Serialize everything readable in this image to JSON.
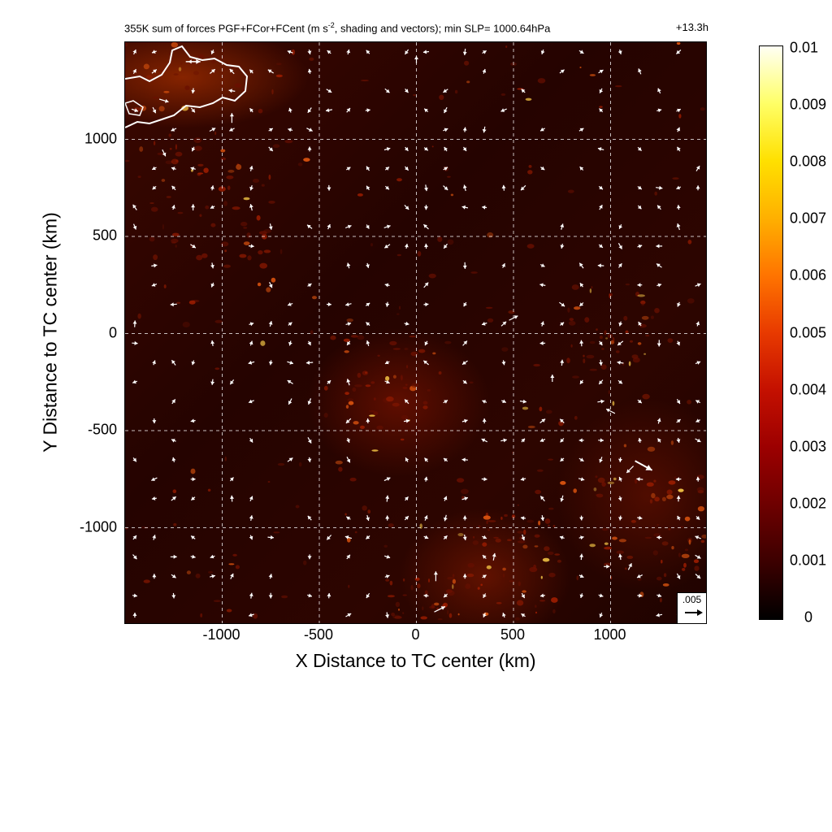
{
  "chart_data": {
    "type": "heatmap",
    "title": "355K sum of forces PGF+FCor+FCent (m s-2, shading and vectors); min SLP= 1000.64hPa",
    "title_main": "355K sum of forces PGF+FCor+FCent (m s",
    "title_sup": "-2",
    "title_rest": ", shading and vectors); min SLP= 1000.64hPa",
    "time_label": "+13.3h",
    "xlabel": "X Distance to TC center (km)",
    "ylabel": "Y Distance to TC center (km)",
    "xlim": [
      -1500,
      1500
    ],
    "ylim": [
      -1500,
      1500
    ],
    "x_ticks": [
      -1000,
      -500,
      0,
      500,
      1000
    ],
    "x_tick_labels": [
      "-1000",
      "-500",
      "0",
      "500",
      "1000"
    ],
    "y_ticks": [
      1000,
      500,
      0,
      -500,
      -1000
    ],
    "y_tick_labels": [
      "1000",
      "500",
      "0",
      "-500",
      "-1000"
    ],
    "grid": true,
    "grid_style": "dashed white",
    "reference_vector_label": ".005",
    "colorbar": {
      "range": [
        0,
        0.01
      ],
      "ticks": [
        0.01,
        0.009,
        0.008,
        0.007,
        0.006,
        0.005,
        0.004,
        0.003,
        0.002,
        0.001,
        0
      ],
      "tick_labels": [
        "0.01",
        "0.009",
        "0.008",
        "0.007",
        "0.006",
        "0.005",
        "0.004",
        "0.003",
        "0.002",
        "0.001",
        "0"
      ],
      "colors": [
        "#000000",
        "#6e0000",
        "#c41000",
        "#ff7400",
        "#ffe000",
        "#fffff4"
      ]
    },
    "vectors": [
      {
        "x": -1150,
        "y": 1400,
        "u": 1,
        "v": 0,
        "mag": 0.003
      },
      {
        "x": -1150,
        "y": 1400,
        "u": -1,
        "v": 0,
        "mag": 0.002
      },
      {
        "x": -950,
        "y": 1110,
        "u": 0,
        "v": 1,
        "mag": 0.002
      },
      {
        "x": -1300,
        "y": 1200,
        "u": 1,
        "v": -0.3,
        "mag": 0.002
      },
      {
        "x": -1300,
        "y": 930,
        "u": 0.5,
        "v": -1,
        "mag": 0.0015
      },
      {
        "x": 0,
        "y": 1410,
        "u": 0,
        "v": 1,
        "mag": 0.0015
      },
      {
        "x": 500,
        "y": 80,
        "u": 1,
        "v": 0.5,
        "mag": 0.002
      },
      {
        "x": 700,
        "y": -230,
        "u": 0,
        "v": 1,
        "mag": 0.0015
      },
      {
        "x": 1000,
        "y": -400,
        "u": -1,
        "v": 0.5,
        "mag": 0.002
      },
      {
        "x": 1170,
        "y": -680,
        "u": 1,
        "v": -0.55,
        "mag": 0.004
      },
      {
        "x": 1100,
        "y": -700,
        "u": -0.5,
        "v": -0.5,
        "mag": 0.002
      },
      {
        "x": 120,
        "y": -1420,
        "u": 1,
        "v": 0.5,
        "mag": 0.0025
      },
      {
        "x": 100,
        "y": -1250,
        "u": 0,
        "v": 1,
        "mag": 0.002
      },
      {
        "x": 400,
        "y": -1150,
        "u": 0.2,
        "v": 1,
        "mag": 0.0015
      },
      {
        "x": 1100,
        "y": -1200,
        "u": 0.5,
        "v": 1,
        "mag": 0.0015
      },
      {
        "x": 980,
        "y": -1200,
        "u": 1,
        "v": 0,
        "mag": 0.0012
      }
    ]
  }
}
